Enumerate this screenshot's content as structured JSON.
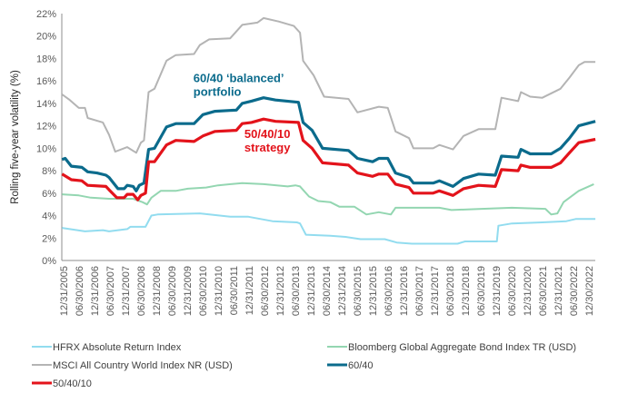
{
  "chart_data": {
    "type": "line",
    "title": "",
    "xlabel": "",
    "ylabel": "Rolling five-year volatility (%)",
    "ylim": [
      0,
      22
    ],
    "yticks": [
      "0%",
      "2%",
      "4%",
      "6%",
      "8%",
      "10%",
      "12%",
      "14%",
      "16%",
      "18%",
      "20%",
      "22%"
    ],
    "xlim": [
      2005.94,
      2023.25
    ],
    "xticks": [
      "12/31/2005",
      "06/30/2006",
      "12/31/2006",
      "06/30/2007",
      "12/31/2007",
      "06/30/2008",
      "12/31/2008",
      "06/30/2009",
      "12/31/2009",
      "06/30/2010",
      "12/31/2010",
      "06/30/2011",
      "12/31/2011",
      "06/30/2012",
      "12/31/2012",
      "06/30/2013",
      "12/31/2013",
      "06/30/2014",
      "12/31/2014",
      "06/30/2015",
      "12/31/2015",
      "06/30/2016",
      "12/31/2016",
      "06/30/2017",
      "12/31/2017",
      "06/30/2018",
      "12/31/2018",
      "06/30/2019",
      "12/31/2019",
      "06/30/2020",
      "12/31/2020",
      "06/30/2021",
      "12/31/2021",
      "06/30/2022",
      "12/30/2022"
    ],
    "grid": false,
    "legend_position": "bottom",
    "annotations": [
      {
        "lines": [
          "60/40 ‘balanced’",
          "portfolio"
        ],
        "color": "#0b6b8c",
        "x": 2010.2,
        "y": 15.9
      },
      {
        "lines": [
          "50/40/10",
          "strategy"
        ],
        "color": "#e3131b",
        "x": 2011.85,
        "y": 10.9
      }
    ],
    "series": [
      {
        "name": "HFRX Absolute Return Index",
        "color": "#92dcef",
        "width": 2,
        "points": [
          [
            2005.95,
            2.9
          ],
          [
            2006.69,
            2.6
          ],
          [
            2007.27,
            2.7
          ],
          [
            2007.47,
            2.6
          ],
          [
            2008.06,
            2.8
          ],
          [
            2008.16,
            3.0
          ],
          [
            2008.65,
            3.0
          ],
          [
            2008.84,
            4.0
          ],
          [
            2009.04,
            4.1
          ],
          [
            2010.41,
            4.2
          ],
          [
            2011.39,
            3.9
          ],
          [
            2011.98,
            3.9
          ],
          [
            2012.76,
            3.5
          ],
          [
            2013.55,
            3.4
          ],
          [
            2013.65,
            3.3
          ],
          [
            2013.84,
            2.3
          ],
          [
            2014.63,
            2.2
          ],
          [
            2015.12,
            2.1
          ],
          [
            2015.61,
            1.9
          ],
          [
            2016.39,
            1.9
          ],
          [
            2016.78,
            1.6
          ],
          [
            2017.27,
            1.5
          ],
          [
            2018.75,
            1.5
          ],
          [
            2018.99,
            1.7
          ],
          [
            2020.02,
            1.7
          ],
          [
            2020.07,
            3.1
          ],
          [
            2020.51,
            3.3
          ],
          [
            2021.49,
            3.4
          ],
          [
            2022.27,
            3.5
          ],
          [
            2022.57,
            3.7
          ],
          [
            2023.21,
            3.7
          ]
        ]
      },
      {
        "name": "Bloomberg Global Aggregate Bond Index TR (USD)",
        "color": "#93d6b1",
        "width": 2,
        "points": [
          [
            2005.95,
            5.9
          ],
          [
            2006.49,
            5.8
          ],
          [
            2006.88,
            5.6
          ],
          [
            2007.47,
            5.5
          ],
          [
            2008.25,
            5.5
          ],
          [
            2008.55,
            5.2
          ],
          [
            2008.7,
            5.0
          ],
          [
            2008.84,
            5.6
          ],
          [
            2009.14,
            6.2
          ],
          [
            2009.63,
            6.2
          ],
          [
            2010.02,
            6.4
          ],
          [
            2010.61,
            6.5
          ],
          [
            2011.0,
            6.7
          ],
          [
            2011.78,
            6.9
          ],
          [
            2012.47,
            6.8
          ],
          [
            2013.25,
            6.6
          ],
          [
            2013.5,
            6.7
          ],
          [
            2013.65,
            6.6
          ],
          [
            2013.94,
            5.7
          ],
          [
            2014.24,
            5.3
          ],
          [
            2014.63,
            5.2
          ],
          [
            2014.92,
            4.8
          ],
          [
            2015.41,
            4.8
          ],
          [
            2015.8,
            4.1
          ],
          [
            2016.2,
            4.3
          ],
          [
            2016.59,
            4.1
          ],
          [
            2016.74,
            4.7
          ],
          [
            2018.16,
            4.7
          ],
          [
            2018.55,
            4.5
          ],
          [
            2019.53,
            4.6
          ],
          [
            2020.51,
            4.7
          ],
          [
            2021.59,
            4.6
          ],
          [
            2021.78,
            4.1
          ],
          [
            2021.98,
            4.2
          ],
          [
            2022.18,
            5.2
          ],
          [
            2022.67,
            6.2
          ],
          [
            2023.16,
            6.8
          ]
        ]
      },
      {
        "name": "MSCI All Country World Index NR (USD)",
        "color": "#b4b4b4",
        "width": 2,
        "points": [
          [
            2005.95,
            14.8
          ],
          [
            2006.2,
            14.3
          ],
          [
            2006.49,
            13.6
          ],
          [
            2006.69,
            13.6
          ],
          [
            2006.78,
            12.7
          ],
          [
            2007.27,
            12.3
          ],
          [
            2007.47,
            11.2
          ],
          [
            2007.67,
            9.7
          ],
          [
            2008.06,
            10.1
          ],
          [
            2008.35,
            9.6
          ],
          [
            2008.5,
            10.5
          ],
          [
            2008.6,
            10.7
          ],
          [
            2008.75,
            15.0
          ],
          [
            2008.94,
            15.3
          ],
          [
            2009.33,
            17.8
          ],
          [
            2009.63,
            18.3
          ],
          [
            2010.22,
            18.4
          ],
          [
            2010.41,
            19.2
          ],
          [
            2010.71,
            19.7
          ],
          [
            2011.39,
            19.8
          ],
          [
            2011.78,
            21.0
          ],
          [
            2012.27,
            21.2
          ],
          [
            2012.47,
            21.6
          ],
          [
            2012.96,
            21.3
          ],
          [
            2013.45,
            20.9
          ],
          [
            2013.65,
            20.3
          ],
          [
            2013.75,
            17.8
          ],
          [
            2014.09,
            16.5
          ],
          [
            2014.43,
            14.6
          ],
          [
            2015.22,
            14.4
          ],
          [
            2015.51,
            13.2
          ],
          [
            2016.2,
            13.7
          ],
          [
            2016.49,
            13.6
          ],
          [
            2016.74,
            11.5
          ],
          [
            2017.18,
            10.9
          ],
          [
            2017.32,
            10.0
          ],
          [
            2017.96,
            10.0
          ],
          [
            2018.16,
            10.3
          ],
          [
            2018.6,
            9.9
          ],
          [
            2018.94,
            11.1
          ],
          [
            2019.43,
            11.7
          ],
          [
            2019.97,
            11.7
          ],
          [
            2020.17,
            14.5
          ],
          [
            2020.71,
            14.2
          ],
          [
            2020.8,
            15.0
          ],
          [
            2021.1,
            14.6
          ],
          [
            2021.49,
            14.5
          ],
          [
            2022.08,
            15.3
          ],
          [
            2022.37,
            16.3
          ],
          [
            2022.67,
            17.4
          ],
          [
            2022.86,
            17.7
          ],
          [
            2023.21,
            17.7
          ]
        ]
      },
      {
        "name": "60/40",
        "color": "#0b6b8c",
        "width": 3.2,
        "points": [
          [
            2005.95,
            9.0
          ],
          [
            2006.05,
            9.1
          ],
          [
            2006.25,
            8.4
          ],
          [
            2006.59,
            8.3
          ],
          [
            2006.78,
            7.9
          ],
          [
            2007.08,
            7.8
          ],
          [
            2007.37,
            7.6
          ],
          [
            2007.47,
            7.4
          ],
          [
            2007.76,
            6.4
          ],
          [
            2007.96,
            6.4
          ],
          [
            2008.06,
            6.7
          ],
          [
            2008.25,
            6.6
          ],
          [
            2008.35,
            6.2
          ],
          [
            2008.45,
            6.7
          ],
          [
            2008.6,
            6.9
          ],
          [
            2008.75,
            9.9
          ],
          [
            2008.94,
            10.0
          ],
          [
            2009.33,
            11.9
          ],
          [
            2009.63,
            12.2
          ],
          [
            2010.22,
            12.2
          ],
          [
            2010.51,
            13.0
          ],
          [
            2010.9,
            13.3
          ],
          [
            2011.59,
            13.4
          ],
          [
            2011.78,
            14.0
          ],
          [
            2012.08,
            14.2
          ],
          [
            2012.47,
            14.5
          ],
          [
            2012.86,
            14.3
          ],
          [
            2013.6,
            14.1
          ],
          [
            2013.75,
            12.3
          ],
          [
            2014.04,
            11.6
          ],
          [
            2014.38,
            10.0
          ],
          [
            2015.22,
            9.8
          ],
          [
            2015.51,
            9.1
          ],
          [
            2016.0,
            8.8
          ],
          [
            2016.2,
            9.1
          ],
          [
            2016.49,
            9.1
          ],
          [
            2016.74,
            7.8
          ],
          [
            2017.18,
            7.4
          ],
          [
            2017.32,
            6.9
          ],
          [
            2017.96,
            6.9
          ],
          [
            2018.16,
            7.1
          ],
          [
            2018.6,
            6.6
          ],
          [
            2018.94,
            7.3
          ],
          [
            2019.43,
            7.7
          ],
          [
            2019.97,
            7.6
          ],
          [
            2020.17,
            9.3
          ],
          [
            2020.71,
            9.2
          ],
          [
            2020.8,
            9.9
          ],
          [
            2021.1,
            9.5
          ],
          [
            2021.78,
            9.5
          ],
          [
            2022.08,
            10.0
          ],
          [
            2022.37,
            10.9
          ],
          [
            2022.67,
            12.0
          ],
          [
            2023.21,
            12.4
          ]
        ]
      },
      {
        "name": "50/40/10",
        "color": "#e3131b",
        "width": 3.2,
        "points": [
          [
            2005.95,
            7.7
          ],
          [
            2006.25,
            7.2
          ],
          [
            2006.59,
            7.1
          ],
          [
            2006.78,
            6.7
          ],
          [
            2007.37,
            6.6
          ],
          [
            2007.47,
            6.3
          ],
          [
            2007.72,
            5.6
          ],
          [
            2007.96,
            5.6
          ],
          [
            2008.06,
            5.9
          ],
          [
            2008.25,
            5.9
          ],
          [
            2008.4,
            5.4
          ],
          [
            2008.5,
            5.8
          ],
          [
            2008.65,
            6.0
          ],
          [
            2008.75,
            8.8
          ],
          [
            2008.94,
            8.8
          ],
          [
            2009.33,
            10.3
          ],
          [
            2009.63,
            10.7
          ],
          [
            2010.22,
            10.6
          ],
          [
            2010.51,
            11.1
          ],
          [
            2010.9,
            11.5
          ],
          [
            2011.59,
            11.6
          ],
          [
            2011.78,
            12.2
          ],
          [
            2012.08,
            12.3
          ],
          [
            2012.47,
            12.6
          ],
          [
            2012.86,
            12.4
          ],
          [
            2013.6,
            12.3
          ],
          [
            2013.75,
            10.7
          ],
          [
            2014.04,
            10.0
          ],
          [
            2014.38,
            8.7
          ],
          [
            2015.22,
            8.5
          ],
          [
            2015.51,
            7.8
          ],
          [
            2016.0,
            7.5
          ],
          [
            2016.2,
            7.7
          ],
          [
            2016.49,
            7.7
          ],
          [
            2016.74,
            6.8
          ],
          [
            2017.18,
            6.5
          ],
          [
            2017.32,
            6.0
          ],
          [
            2017.96,
            6.0
          ],
          [
            2018.16,
            6.2
          ],
          [
            2018.6,
            5.8
          ],
          [
            2018.94,
            6.4
          ],
          [
            2019.43,
            6.7
          ],
          [
            2019.97,
            6.6
          ],
          [
            2020.17,
            8.1
          ],
          [
            2020.71,
            8.0
          ],
          [
            2020.8,
            8.5
          ],
          [
            2021.1,
            8.3
          ],
          [
            2021.78,
            8.3
          ],
          [
            2022.08,
            8.7
          ],
          [
            2022.37,
            9.6
          ],
          [
            2022.67,
            10.5
          ],
          [
            2023.21,
            10.8
          ]
        ]
      }
    ]
  }
}
